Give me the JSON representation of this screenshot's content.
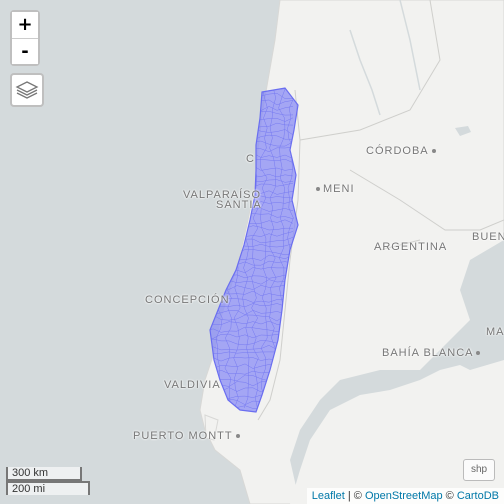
{
  "map": {
    "zoom_in_label": "+",
    "zoom_out_label": "-",
    "layers_icon": "layers-icon",
    "shp_label": "shp",
    "labels": [
      {
        "text": "CÓRDOBA",
        "style": "dot"
      },
      {
        "text": "MENI",
        "style": "dot-before"
      },
      {
        "text": "ARGENTINA",
        "style": ""
      },
      {
        "text": "BUENO",
        "style": ""
      },
      {
        "text": "MA",
        "style": ""
      },
      {
        "text": "BAHÍA BLANCA",
        "style": "dot"
      },
      {
        "text": "VALPARAÍSO",
        "style": ""
      },
      {
        "text": "SANTIA",
        "style": ""
      },
      {
        "text": "C",
        "style": ""
      },
      {
        "text": "CONCEPCIÓN",
        "style": ""
      },
      {
        "text": "VALDIVIA",
        "style": ""
      },
      {
        "text": "PUERTO MONTT",
        "style": "dot"
      }
    ],
    "scale": {
      "metric": "300 km",
      "imperial": "200 mi"
    },
    "attribution": {
      "leaflet": "Leaflet",
      "sep": " | © ",
      "osm": "OpenStreetMap",
      "sep2": " © ",
      "carto": "CartoDB"
    },
    "colors": {
      "water": "#d4dadc",
      "land": "#f2f2f0",
      "polygon_fill": "#8a8cf5",
      "polygon_stroke": "#6a6ef0"
    }
  }
}
